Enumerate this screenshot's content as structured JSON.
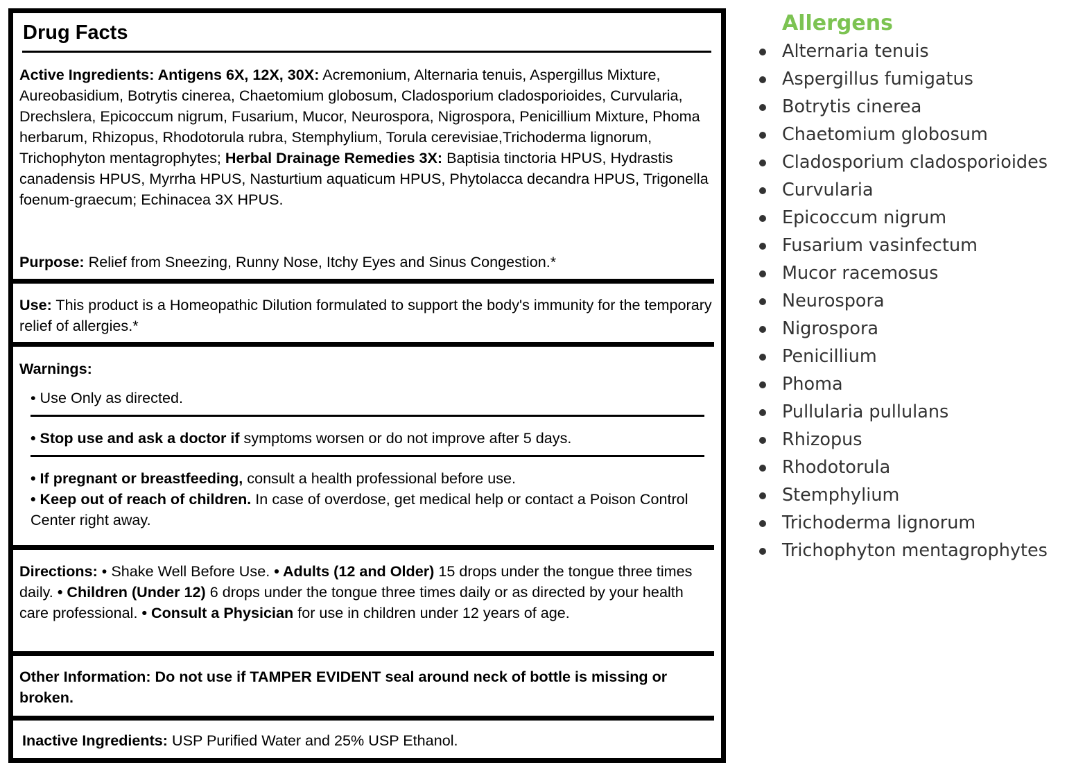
{
  "drug_facts": {
    "title": "Drug Facts",
    "active": {
      "label1": "Active Ingredients: Antigens 6X, 12X, 30X:",
      "text1": " Acremonium, Alternaria tenuis, Aspergillus Mixture, Aureobasidium, Botrytis cinerea, Chaetomium globosum, Cladosporium cladosporioides, Curvularia, Drechslera, Epicoccum nigrum, Fusarium, Mucor, Neurospora, Nigrospora, Penicillium Mixture, Phoma herbarum, Rhizopus, Rhodotorula rubra, Stemphylium, Torula cerevisiae,Trichoderma lignorum, Trichophyton mentagrophytes; ",
      "label2": "Herbal Drainage Remedies 3X:",
      "text2": " Baptisia tinctoria HPUS, Hydrastis canadensis HPUS, Myrrha HPUS, Nasturtium aquaticum HPUS, Phytolacca decandra HPUS, Trigonella foenum-graecum; Echinacea 3X HPUS."
    },
    "purpose": {
      "label": "Purpose:",
      "text": " Relief from Sneezing, Runny Nose, Itchy Eyes and Sinus Congestion.*"
    },
    "use": {
      "label": "Use:",
      "text": " This product is a Homeopathic Dilution formulated to support the body's immunity for the temporary relief of allergies.*"
    },
    "warnings": {
      "label": "Warnings:",
      "item1": "• Use Only as directed.",
      "item2_bold": "• Stop use and ask a doctor if",
      "item2_text": " symptoms worsen or do not improve after 5 days.",
      "item3_bold": "• If pregnant or breastfeeding,",
      "item3_text": " consult a health professional before use.",
      "item4_bold": "• Keep out of reach of children.",
      "item4_text": " In case of overdose, get medical help or contact a Poison Control Center right away."
    },
    "directions": {
      "label": "Directions:",
      "t1": " • Shake Well Before Use. ",
      "b1": "• Adults (12 and Older)",
      "t2": " 15 drops under the tongue three times daily. ",
      "b2": "• Children (Under 12)",
      "t3": " 6 drops under the tongue three times daily or as directed by your health care professional. ",
      "b3": "• Consult a Physician",
      "t4": " for use in children under 12 years of age."
    },
    "other": {
      "text": "Other Information: Do not use if TAMPER EVIDENT seal around neck of bottle is missing or broken."
    },
    "inactive": {
      "label": "Inactive Ingredients:",
      "text": " USP Purified Water and 25% USP Ethanol."
    }
  },
  "allergens": {
    "title": "Allergens",
    "title_color": "#7cc352",
    "items": [
      "Alternaria tenuis",
      "Aspergillus fumigatus",
      "Botrytis cinerea",
      "Chaetomium globosum",
      "Cladosporium cladosporioides",
      "Curvularia",
      "Epicoccum nigrum",
      "Fusarium vasinfectum",
      "Mucor racemosus",
      "Neurospora",
      "Nigrospora",
      "Penicillium",
      "Phoma",
      "Pullularia pullulans",
      "Rhizopus",
      "Rhodotorula",
      "Stemphylium",
      "Trichoderma lignorum",
      "Trichophyton mentagrophytes"
    ]
  }
}
